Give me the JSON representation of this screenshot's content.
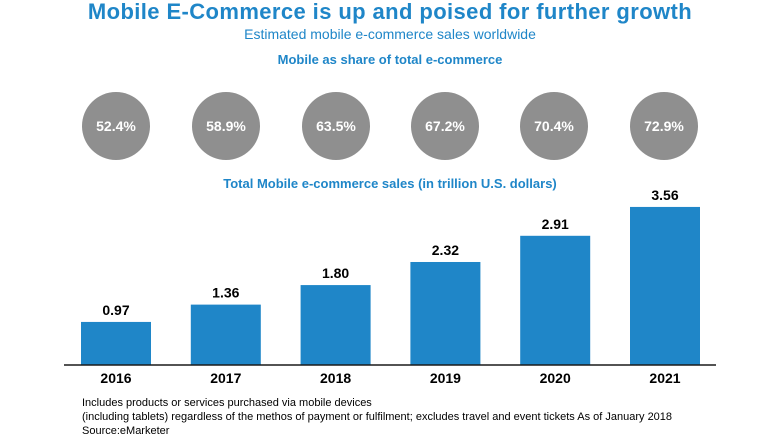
{
  "title": "Mobile E-Commerce is up and poised for further growth",
  "subtitle": "Estimated mobile e-commerce sales worldwide",
  "share_section_label": "Mobile as share of total e-commerce",
  "share": [
    {
      "year": "2016",
      "label": "52.4%"
    },
    {
      "year": "2017",
      "label": "58.9%"
    },
    {
      "year": "2018",
      "label": "63.5%"
    },
    {
      "year": "2019",
      "label": "67.2%"
    },
    {
      "year": "2020",
      "label": "70.4%"
    },
    {
      "year": "2021",
      "label": "72.9%"
    }
  ],
  "chart_data": {
    "type": "bar",
    "title": "Total Mobile e-commerce sales (in trillion U.S. dollars)",
    "categories": [
      "2016",
      "2017",
      "2018",
      "2019",
      "2020",
      "2021"
    ],
    "values": [
      0.97,
      1.36,
      1.8,
      2.32,
      2.91,
      3.56
    ],
    "value_labels": [
      "0.97",
      "1.36",
      "1.80",
      "2.32",
      "2.91",
      "3.56"
    ],
    "xlabel": "",
    "ylabel": "",
    "ylim": [
      0,
      4.0
    ],
    "bar_color": "#1f86c8"
  },
  "notes": {
    "line1": "Includes products or services purchased via mobile devices",
    "line2": "(including tablets) regardless of the methos of payment or fulfilment; excludes travel and event tickets As of January 2018",
    "source": "Source:eMarketer"
  },
  "colors": {
    "accent": "#1f86c8",
    "circle": "#8f8f8f"
  }
}
